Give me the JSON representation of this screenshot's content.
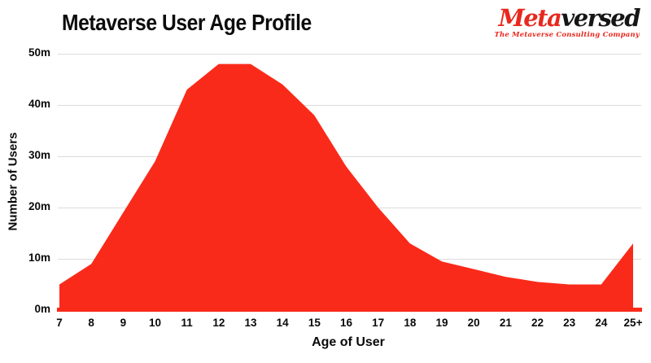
{
  "header": {
    "title": "Metaverse User Age Profile"
  },
  "logo": {
    "brand_part_red": "Meta",
    "brand_part_black": "versed",
    "tagline": "The Metaverse Consulting Company"
  },
  "chart_data": {
    "type": "area",
    "title": "Metaverse User Age Profile",
    "xlabel": "Age of User",
    "ylabel": "Number of Users",
    "unit": "millions of users",
    "categories": [
      "7",
      "8",
      "9",
      "10",
      "11",
      "12",
      "13",
      "14",
      "15",
      "16",
      "17",
      "18",
      "19",
      "20",
      "21",
      "22",
      "23",
      "24",
      "25+"
    ],
    "values": [
      5,
      9,
      19,
      29,
      43,
      48,
      48,
      44,
      38,
      28,
      20,
      13,
      9.5,
      8,
      6.5,
      5.5,
      5,
      5,
      13
    ],
    "ylim": [
      0,
      50
    ],
    "ytick_labels": [
      "0m",
      "10m",
      "20m",
      "30m",
      "40m",
      "50m"
    ],
    "grid": "horizontal",
    "legend": "none",
    "colors": {
      "area": "#fa2a1a",
      "baseline": "#fa2a1a",
      "gridline": "#dcdcdc",
      "text": "#0a0a0a",
      "logo_red": "#e8281e",
      "logo_black": "#161616"
    }
  }
}
